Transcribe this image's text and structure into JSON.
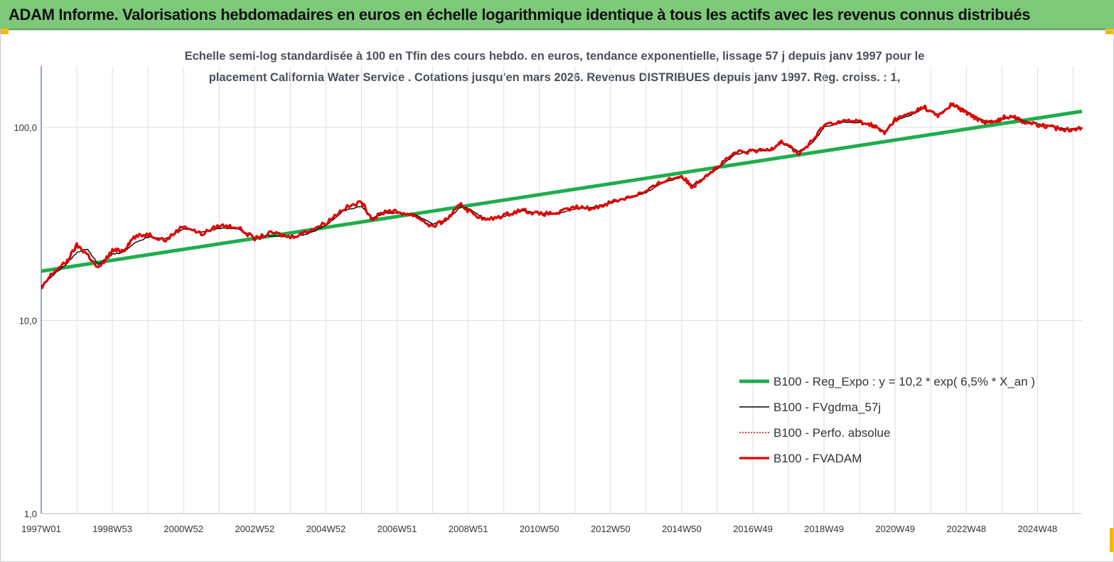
{
  "banner": {
    "title": "ADAM Informe. Valorisations hebdomadaires en euros en échelle logarithmique identique à tous les actifs avec les revenus connus distribués"
  },
  "chart_data": {
    "type": "line",
    "title_line1": "Echelle semi-log standardisée à 100 en Tfin des cours hebdo. en euros, tendance exponentielle, lissage 57 j depuis janv 1997 pour le",
    "title_line2": "placement California Water Service . Cotations jusqu'en mars 2026. Revenus DISTRIBUES depuis janv 1997. Reg. croiss. : 1,",
    "y_scale": "log",
    "ylim": [
      1,
      180
    ],
    "y_ticks": [
      {
        "value": 1,
        "label": "1,0"
      },
      {
        "value": 10,
        "label": "10,0"
      },
      {
        "value": 100,
        "label": "100,0"
      }
    ],
    "x_start": 1997.0,
    "x_end": 2026.25,
    "x_ticks": [
      {
        "x": 1997.0,
        "label": "1997W01"
      },
      {
        "x": 1999.0,
        "label": "1998W53"
      },
      {
        "x": 2001.0,
        "label": "2000W52"
      },
      {
        "x": 2003.0,
        "label": "2002W52"
      },
      {
        "x": 2005.0,
        "label": "2004W52"
      },
      {
        "x": 2007.0,
        "label": "2006W51"
      },
      {
        "x": 2009.0,
        "label": "2008W51"
      },
      {
        "x": 2011.0,
        "label": "2010W50"
      },
      {
        "x": 2013.0,
        "label": "2012W50"
      },
      {
        "x": 2015.0,
        "label": "2014W50"
      },
      {
        "x": 2017.0,
        "label": "2016W49"
      },
      {
        "x": 2019.0,
        "label": "2018W49"
      },
      {
        "x": 2021.0,
        "label": "2020W49"
      },
      {
        "x": 2023.0,
        "label": "2022W48"
      },
      {
        "x": 2025.0,
        "label": "2024W48"
      }
    ],
    "grid": "vertical",
    "legend_position": "right",
    "series": [
      {
        "name": "B100 - Reg_Expo : y = 10,2 *  exp( 6,5% *   X_an )",
        "color": "#1fad4c",
        "style": "thick",
        "x": [
          1997.0,
          2026.25
        ],
        "y": [
          18.0,
          121.0
        ]
      },
      {
        "name": "B100 - FVgdma_57j",
        "color": "#000000",
        "style": "thin",
        "x": [
          1997.0,
          1997.3,
          1997.7,
          1998.0,
          1998.3,
          1998.6,
          1999.0,
          1999.3,
          1999.6,
          2000.0,
          2000.5,
          2001.0,
          2001.5,
          2002.0,
          2002.5,
          2003.0,
          2003.5,
          2004.0,
          2004.5,
          2005.0,
          2005.5,
          2006.0,
          2006.3,
          2006.7,
          2007.0,
          2007.5,
          2008.0,
          2008.4,
          2008.8,
          2009.0,
          2009.5,
          2010.0,
          2010.5,
          2011.0,
          2011.5,
          2012.0,
          2012.5,
          2013.0,
          2013.5,
          2014.0,
          2014.5,
          2015.0,
          2015.3,
          2015.7,
          2016.0,
          2016.5,
          2017.0,
          2017.5,
          2017.8,
          2018.3,
          2018.7,
          2019.0,
          2019.5,
          2020.0,
          2020.4,
          2020.7,
          2021.0,
          2021.4,
          2021.8,
          2022.2,
          2022.6,
          2022.9,
          2023.2,
          2023.5,
          2023.8,
          2024.0,
          2024.3,
          2024.6,
          2025.0,
          2025.4,
          2025.8,
          2026.25
        ],
        "y": [
          15.0,
          17.0,
          19.5,
          22.5,
          23.5,
          19.5,
          22.0,
          22.5,
          25.0,
          27.0,
          26.5,
          30.0,
          28.5,
          30.0,
          30.0,
          27.0,
          27.5,
          27.0,
          28.0,
          31.0,
          37.0,
          39.0,
          34.0,
          36.0,
          36.0,
          35.5,
          31.5,
          33.0,
          39.0,
          38.0,
          33.5,
          34.5,
          37.0,
          36.0,
          35.5,
          38.0,
          38.5,
          40.5,
          43.0,
          46.0,
          52.0,
          55.0,
          50.0,
          56.0,
          61.0,
          72.0,
          76.0,
          76.0,
          83.0,
          75.0,
          84.0,
          100.0,
          106.0,
          106.0,
          103.0,
          95.0,
          108.0,
          115.0,
          125.0,
          116.0,
          130.0,
          124.0,
          115.0,
          108.0,
          107.0,
          110.0,
          113.0,
          108.0,
          104.0,
          101.0,
          98.0,
          99.0
        ]
      },
      {
        "name": "B100 - Perfo. absolue",
        "color": "#e00000",
        "style": "dotted",
        "x": [],
        "y": []
      },
      {
        "name": "B100 - FVADAM",
        "color": "#e00000",
        "style": "thick",
        "x": [
          1997.0,
          1997.3,
          1997.7,
          1998.0,
          1998.3,
          1998.6,
          1999.0,
          1999.3,
          1999.6,
          2000.0,
          2000.5,
          2001.0,
          2001.5,
          2002.0,
          2002.5,
          2003.0,
          2003.5,
          2004.0,
          2004.5,
          2005.0,
          2005.5,
          2006.0,
          2006.3,
          2006.7,
          2007.0,
          2007.5,
          2008.0,
          2008.4,
          2008.8,
          2009.0,
          2009.5,
          2010.0,
          2010.5,
          2011.0,
          2011.5,
          2012.0,
          2012.5,
          2013.0,
          2013.5,
          2014.0,
          2014.5,
          2015.0,
          2015.3,
          2015.7,
          2016.0,
          2016.5,
          2017.0,
          2017.5,
          2017.8,
          2018.3,
          2018.7,
          2019.0,
          2019.5,
          2020.0,
          2020.4,
          2020.7,
          2021.0,
          2021.4,
          2021.8,
          2022.2,
          2022.6,
          2022.9,
          2023.2,
          2023.5,
          2023.8,
          2024.0,
          2024.3,
          2024.6,
          2025.0,
          2025.4,
          2025.8,
          2026.25
        ],
        "y": [
          14.5,
          17.5,
          20.0,
          24.5,
          22.0,
          18.5,
          23.0,
          23.0,
          27.0,
          28.0,
          26.0,
          31.0,
          28.0,
          31.0,
          30.5,
          26.5,
          28.5,
          27.0,
          29.0,
          32.0,
          38.0,
          41.0,
          33.5,
          37.0,
          36.5,
          35.0,
          30.5,
          33.5,
          40.0,
          37.0,
          33.0,
          35.0,
          37.5,
          35.5,
          36.0,
          38.5,
          38.0,
          41.0,
          43.5,
          46.5,
          53.0,
          56.0,
          49.0,
          57.0,
          62.0,
          74.0,
          75.0,
          77.0,
          85.0,
          73.0,
          86.0,
          103.0,
          108.0,
          107.0,
          102.0,
          93.0,
          110.0,
          117.0,
          128.0,
          114.0,
          132.0,
          122.0,
          113.0,
          107.0,
          106.0,
          112.0,
          115.0,
          107.0,
          103.0,
          100.0,
          97.0,
          100.0
        ]
      }
    ]
  }
}
